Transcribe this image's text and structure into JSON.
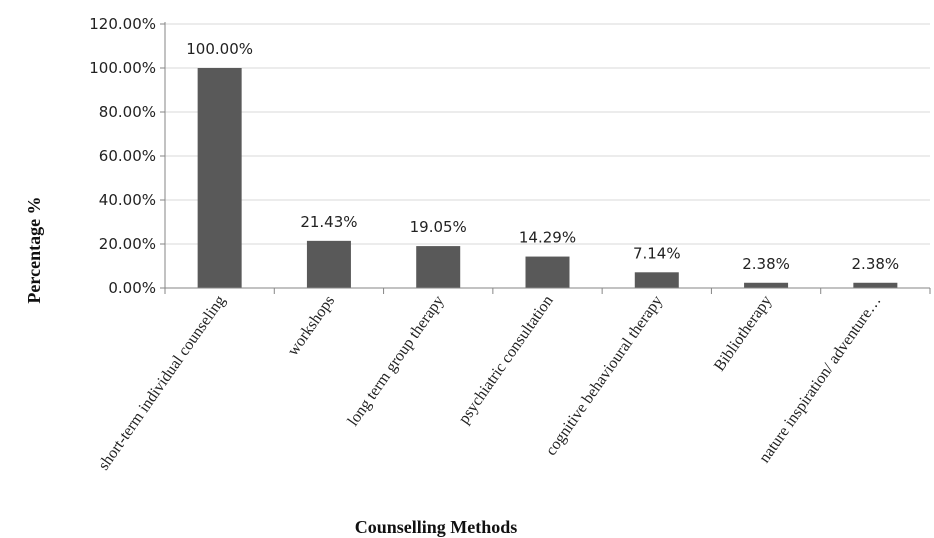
{
  "chart_data": {
    "type": "bar",
    "categories": [
      "short-term individual counseling",
      "workshops",
      "long term group therapy",
      "psychiatric consultation",
      "cognitive behavioural therapy",
      "Bibliotherapy",
      "nature inspiration/ adventure…"
    ],
    "values": [
      100.0,
      21.43,
      19.05,
      14.29,
      7.14,
      2.38,
      2.38
    ],
    "data_labels": [
      "100.00%",
      "21.43%",
      "19.05%",
      "14.29%",
      "7.14%",
      "2.38%",
      "2.38%"
    ],
    "xlabel": "Counselling Methods",
    "ylabel": "Percentage %",
    "ylim": [
      0,
      120
    ],
    "yticks": [
      0,
      20,
      40,
      60,
      80,
      100,
      120
    ],
    "ytick_labels": [
      "0.00%",
      "20.00%",
      "40.00%",
      "60.00%",
      "80.00%",
      "100.00%",
      "120.00%"
    ],
    "grid": true,
    "legend": "none",
    "colors": {
      "bar": "#595959",
      "grid": "#d9d9d9",
      "axis": "#868686"
    }
  }
}
